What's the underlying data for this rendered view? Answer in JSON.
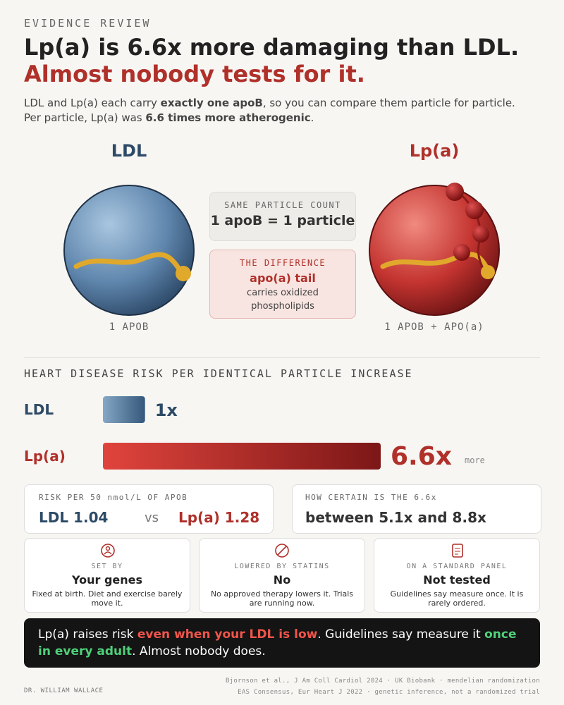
{
  "header": {
    "kicker": "EVIDENCE REVIEW",
    "headline": [
      "Lp(a) is 6.6x more damaging than LDL.",
      "Almost nobody tests for it."
    ],
    "intro": [
      "LDL and Lp(a) each carry ",
      "exactly one apoB",
      ", so you can compare them particle for particle. Per particle, Lp(a) was ",
      "6.6 times more atherogenic",
      "."
    ]
  },
  "particles": {
    "left": {
      "title": "LDL",
      "caption": "1 APOB"
    },
    "right": {
      "title": "Lp(a)",
      "caption": "1 APOB + APO(a)"
    },
    "same": {
      "label": "SAME PARTICLE COUNT",
      "text": "1 apoB = 1 particle"
    },
    "difference": {
      "label": "THE DIFFERENCE",
      "title": "apo(a) tail",
      "text": "carries oxidized phospholipids"
    }
  },
  "comparison": {
    "title": "HEART DISEASE RISK PER IDENTICAL PARTICLE INCREASE",
    "categories": [
      "LDL",
      "Lp(a)"
    ],
    "values": [
      1,
      6.6
    ],
    "value_labels": [
      "1x",
      "6.6x"
    ],
    "suffix": "more"
  },
  "stats": [
    {
      "label": "RISK PER 50 nmol/L OF APOB",
      "left": "LDL 1.04",
      "mid": "vs",
      "right": "Lp(a) 1.28"
    },
    {
      "label": "HOW CERTAIN IS THE 6.6x",
      "text": "between 5.1x and 8.8x"
    }
  ],
  "cards": [
    {
      "label": "SET BY",
      "title": "Your genes",
      "text": "Fixed at birth. Diet and exercise barely move it."
    },
    {
      "label": "LOWERED BY STATINS",
      "title": "No",
      "text": "No approved therapy lowers it. Trials are running now."
    },
    {
      "label": "ON A STANDARD PANEL",
      "title": "Not tested",
      "text": "Guidelines say measure once. It is rarely ordered."
    }
  ],
  "callout": [
    "Lp(a) raises risk ",
    "even when your LDL is low",
    ". Guidelines say measure it ",
    "once in every adult",
    ". Almost nobody does."
  ],
  "footer": {
    "author": "DR. WILLIAM WALLACE",
    "refs": [
      "Bjornson et al., J Am Coll Cardiol 2024 · UK Biobank · mendelian randomization",
      "EAS Consensus, Eur Heart J 2022 · genetic inference, not a randomized trial"
    ]
  }
}
